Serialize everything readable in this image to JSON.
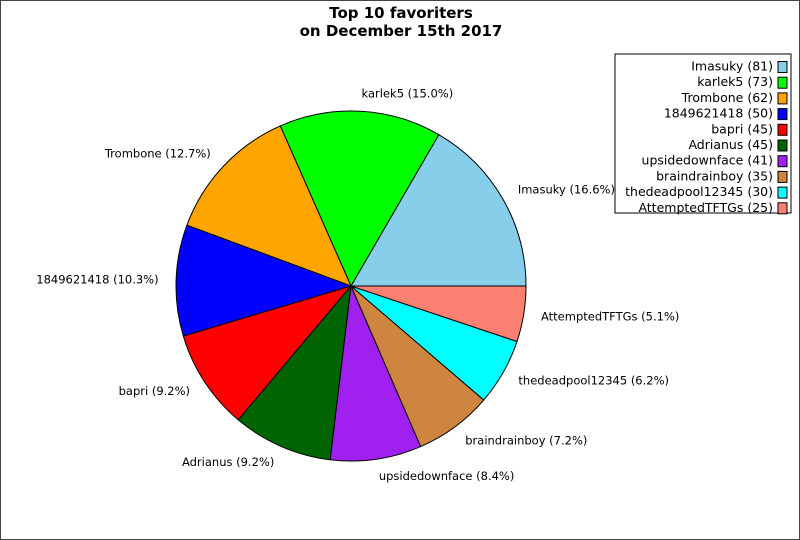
{
  "chart_data": {
    "type": "pie",
    "title": [
      "Top 10 favoriters",
      "on December 15th 2017"
    ],
    "start_angle_deg": 0,
    "direction": "counterclockwise",
    "slices": [
      {
        "name": "Imasuky",
        "value": 81,
        "legend": "Imasuky (81)",
        "label": "Imasuky (16.6%)",
        "color": "#87ceeb"
      },
      {
        "name": "karlek5",
        "value": 73,
        "legend": "karlek5 (73)",
        "label": "karlek5 (15.0%)",
        "color": "#00ff00"
      },
      {
        "name": "Trombone",
        "value": 62,
        "legend": "Trombone (62)",
        "label": "Trombone (12.7%)",
        "color": "#ffa500"
      },
      {
        "name": "1849621418",
        "value": 50,
        "legend": "1849621418 (50)",
        "label": "1849621418 (10.3%)",
        "color": "#0000ff"
      },
      {
        "name": "bapri",
        "value": 45,
        "legend": "bapri (45)",
        "label": "bapri (9.2%)",
        "color": "#ff0000"
      },
      {
        "name": "Adrianus",
        "value": 45,
        "legend": "Adrianus (45)",
        "label": "Adrianus (9.2%)",
        "color": "#006400"
      },
      {
        "name": "upsidedownface",
        "value": 41,
        "legend": "upsidedownface (41)",
        "label": "upsidedownface (8.4%)",
        "color": "#a020f0"
      },
      {
        "name": "braindrainboy",
        "value": 35,
        "legend": "braindrainboy (35)",
        "label": "braindrainboy (7.2%)",
        "color": "#cd853f"
      },
      {
        "name": "thedeadpool12345",
        "value": 30,
        "legend": "thedeadpool12345 (30)",
        "label": "thedeadpool12345 (6.2%)",
        "color": "#00ffff"
      },
      {
        "name": "AttemptedTFTGs",
        "value": 25,
        "legend": "AttemptedTFTGs (25)",
        "label": "AttemptedTFTGs (5.1%)",
        "color": "#fa8072"
      }
    ],
    "legend_position": "top-right"
  }
}
